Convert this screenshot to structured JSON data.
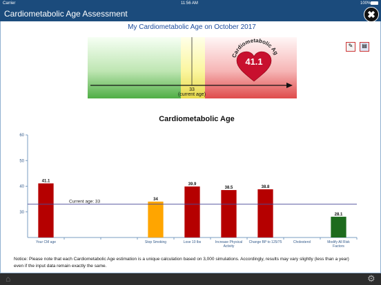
{
  "status_bar": {
    "carrier": "Carrier",
    "time": "11:56 AM",
    "battery": "100%"
  },
  "header": {
    "title": "Cardiometabolic Age Assessment"
  },
  "subtitle": "My Cardiometabolic Age on October 2017",
  "gauge": {
    "cm_age": 41.1,
    "arc_label": "Cardiometabolic Age",
    "current_age": 33,
    "current_age_label": "(current age)"
  },
  "chart_data": {
    "type": "bar",
    "title": "Cardiometabolic Age",
    "categories": [
      "Your CM age",
      null,
      null,
      "Stop Smoking",
      "Lose 10 lbs",
      "Increase Physical Activity",
      "Change BP to 125/75",
      "Cholesterol",
      "Modify All Risk Factors"
    ],
    "values": [
      41.1,
      null,
      null,
      34,
      39.9,
      38.5,
      38.8,
      null,
      28.1
    ],
    "colors": [
      "#b50000",
      null,
      null,
      "#ffa500",
      "#b50000",
      "#b50000",
      "#b50000",
      null,
      "#1d6b1d"
    ],
    "ylim": [
      20,
      60
    ],
    "yticks": [
      30,
      40,
      50,
      60
    ],
    "reference_line": {
      "value": 33,
      "label": "Current age: 33",
      "color": "#4a4a9a"
    }
  },
  "notice": "Notice: Please note that each Cardiometabolic Age estimation is a unique calculation based on 3,000 simulations. Accordingly, results may vary slightly (less than a year) even if the input data remain exactly the same."
}
